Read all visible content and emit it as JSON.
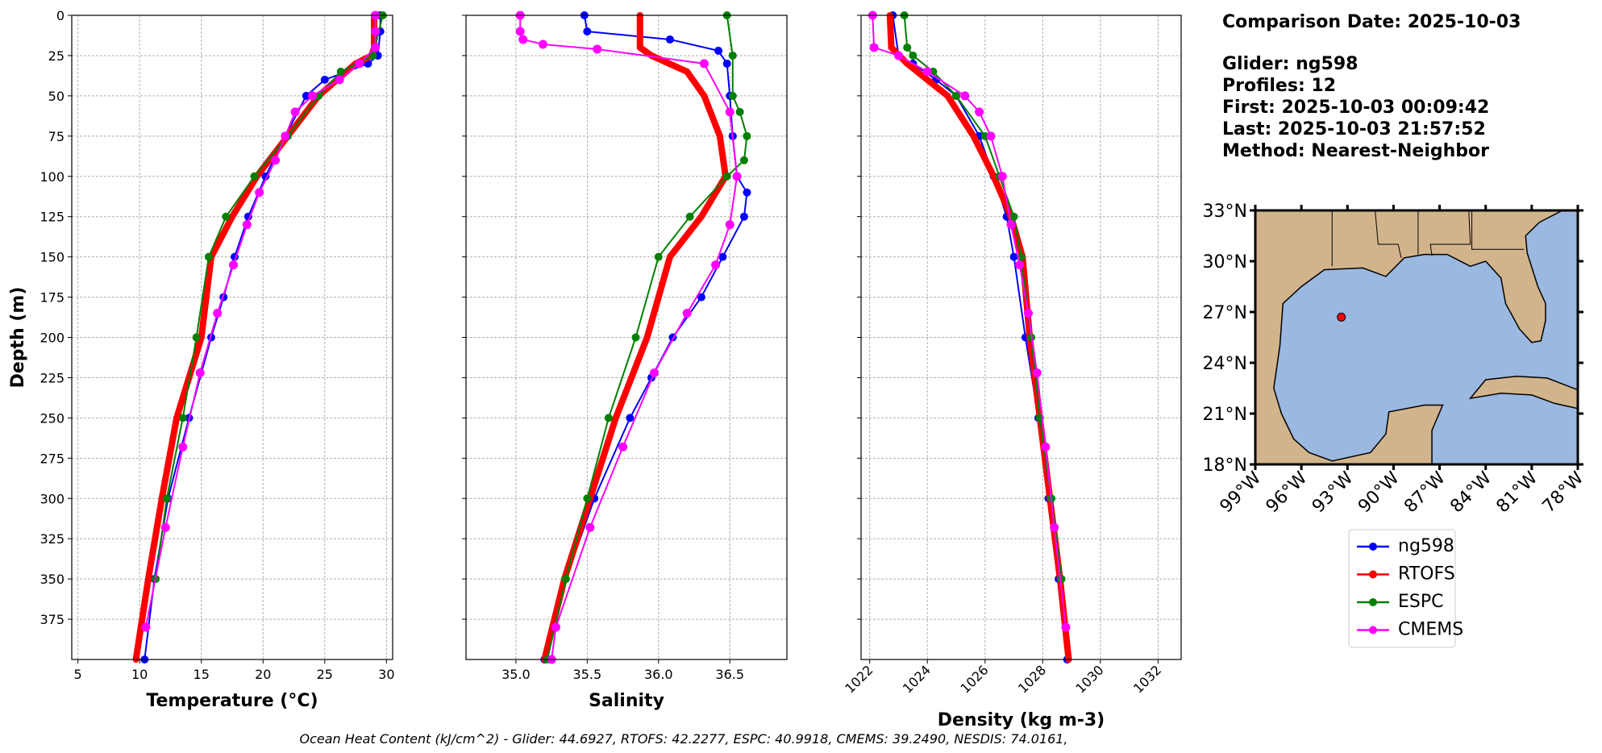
{
  "chart_data": [
    {
      "type": "line",
      "xlabel": "Temperature (°C)",
      "ylabel": "Depth (m)",
      "xlim": [
        4.5,
        30.5
      ],
      "xticks": [
        5,
        10,
        15,
        20,
        25,
        30
      ],
      "ylim": [
        0,
        400
      ],
      "yticks": [
        0,
        25,
        50,
        75,
        100,
        125,
        150,
        175,
        200,
        225,
        250,
        275,
        300,
        325,
        350,
        375
      ],
      "grid": true,
      "inverted_y": true,
      "series": [
        {
          "name": "ng598",
          "color": "#0000ff",
          "depth": [
            0,
            10,
            25,
            30,
            40,
            50,
            75,
            100,
            125,
            150,
            175,
            200,
            250,
            300,
            350,
            400
          ],
          "values": [
            29.5,
            29.5,
            29.3,
            28.5,
            25,
            23.5,
            21.8,
            20.2,
            18.8,
            17.7,
            16.8,
            15.8,
            14,
            12.3,
            11.2,
            10.4
          ]
        },
        {
          "name": "RTOFS",
          "color": "#ff0000",
          "depth": [
            0,
            20,
            25,
            30,
            40,
            50,
            75,
            100,
            125,
            150,
            200,
            250,
            300,
            350,
            400
          ],
          "values": [
            29,
            29,
            28.8,
            27.5,
            26,
            24.5,
            22,
            19.5,
            17.5,
            15.8,
            15,
            13,
            11.8,
            10.7,
            9.7
          ]
        },
        {
          "name": "ESPC",
          "color": "#008000",
          "depth": [
            0,
            25,
            35,
            50,
            75,
            100,
            125,
            150,
            200,
            250,
            300,
            350
          ],
          "values": [
            29.7,
            28.9,
            26.3,
            24.5,
            22,
            19.3,
            17,
            15.6,
            14.6,
            13.5,
            12.2,
            11.3
          ]
        },
        {
          "name": "CMEMS",
          "color": "#ff00ff",
          "depth": [
            0,
            10,
            20,
            30,
            40,
            50,
            60,
            75,
            90,
            110,
            130,
            155,
            185,
            222,
            268,
            318,
            380
          ],
          "values": [
            29.1,
            29.1,
            29.1,
            27.8,
            26.2,
            24,
            22.6,
            21.8,
            21,
            19.7,
            18.7,
            17.6,
            16.3,
            14.9,
            13.5,
            12.1,
            10.5
          ]
        }
      ]
    },
    {
      "type": "line",
      "xlabel": "Salinity",
      "xlim": [
        34.65,
        36.9
      ],
      "xticks": [
        {
          "value": 35,
          "label": "35.0"
        },
        35.5,
        {
          "value": 36,
          "label": "36.0"
        },
        36.5
      ],
      "ylim": [
        0,
        400
      ],
      "yticks": [
        0,
        25,
        50,
        75,
        100,
        125,
        150,
        175,
        200,
        225,
        250,
        275,
        300,
        325,
        350,
        375
      ],
      "grid": true,
      "inverted_y": true,
      "series": [
        {
          "name": "ng598",
          "color": "#0000ff",
          "depth": [
            0,
            10,
            15,
            22,
            30,
            50,
            75,
            100,
            110,
            125,
            150,
            175,
            200,
            225,
            250,
            300,
            350,
            400
          ],
          "values": [
            35.48,
            35.5,
            36.08,
            36.42,
            36.48,
            36.5,
            36.52,
            36.55,
            36.62,
            36.6,
            36.45,
            36.3,
            36.1,
            35.95,
            35.8,
            35.55,
            35.35,
            35.2
          ]
        },
        {
          "name": "RTOFS",
          "color": "#ff0000",
          "depth": [
            0,
            20,
            25,
            35,
            50,
            75,
            100,
            125,
            150,
            200,
            250,
            300,
            350,
            400
          ],
          "values": [
            35.87,
            35.87,
            35.95,
            36.2,
            36.32,
            36.43,
            36.47,
            36.3,
            36.08,
            35.92,
            35.7,
            35.52,
            35.34,
            35.2
          ]
        },
        {
          "name": "ESPC",
          "color": "#008000",
          "depth": [
            0,
            25,
            50,
            60,
            75,
            90,
            100,
            125,
            150,
            200,
            250,
            300,
            350,
            400
          ],
          "values": [
            36.48,
            36.52,
            36.52,
            36.57,
            36.62,
            36.6,
            36.48,
            36.22,
            36,
            35.84,
            35.65,
            35.5,
            35.35,
            35.22
          ]
        },
        {
          "name": "CMEMS",
          "color": "#ff00ff",
          "depth": [
            0,
            10,
            15,
            18,
            21,
            30,
            60,
            100,
            130,
            155,
            185,
            222,
            268,
            318,
            380,
            400
          ],
          "values": [
            35.03,
            35.03,
            35.05,
            35.19,
            35.57,
            36.32,
            36.5,
            36.55,
            36.5,
            36.4,
            36.2,
            35.97,
            35.75,
            35.52,
            35.28,
            35.25
          ]
        }
      ]
    },
    {
      "type": "line",
      "xlabel": "Density (kg m-3)",
      "xlim": [
        1021.7,
        1032.8
      ],
      "xticks": [
        1022,
        1024,
        1026,
        1028,
        1030,
        1032
      ],
      "ylim": [
        0,
        400
      ],
      "yticks": [
        0,
        25,
        50,
        75,
        100,
        125,
        150,
        175,
        200,
        225,
        250,
        275,
        300,
        325,
        350,
        375
      ],
      "grid": true,
      "inverted_y": true,
      "series": [
        {
          "name": "ng598",
          "color": "#0000ff",
          "depth": [
            0,
            25,
            30,
            40,
            50,
            75,
            100,
            125,
            150,
            200,
            250,
            300,
            350,
            400
          ],
          "values": [
            1022.8,
            1023,
            1023.5,
            1024.3,
            1025,
            1025.8,
            1026.3,
            1026.75,
            1027,
            1027.4,
            1027.85,
            1028.2,
            1028.55,
            1028.85
          ]
        },
        {
          "name": "RTOFS",
          "color": "#ff0000",
          "depth": [
            0,
            20,
            30,
            50,
            75,
            100,
            125,
            150,
            200,
            250,
            300,
            350,
            400
          ],
          "values": [
            1022.7,
            1022.75,
            1023.3,
            1024.7,
            1025.6,
            1026.3,
            1026.9,
            1027.3,
            1027.55,
            1027.9,
            1028.25,
            1028.6,
            1028.9
          ]
        },
        {
          "name": "ESPC",
          "color": "#008000",
          "depth": [
            0,
            20,
            25,
            35,
            50,
            75,
            100,
            125,
            150,
            200,
            250,
            300,
            350
          ],
          "values": [
            1023.2,
            1023.3,
            1023.5,
            1024.2,
            1025,
            1026,
            1026.5,
            1027,
            1027.25,
            1027.6,
            1027.9,
            1028.3,
            1028.65
          ]
        },
        {
          "name": "CMEMS",
          "color": "#ff00ff",
          "depth": [
            0,
            20,
            25,
            35,
            50,
            60,
            75,
            100,
            130,
            155,
            185,
            222,
            268,
            318,
            380
          ],
          "values": [
            1022.1,
            1022.15,
            1023,
            1024,
            1025.3,
            1025.8,
            1026.2,
            1026.6,
            1026.9,
            1027.2,
            1027.5,
            1027.8,
            1028.1,
            1028.4,
            1028.8
          ]
        }
      ]
    }
  ],
  "info": [
    "Comparison Date: 2025-10-03",
    "Glider: ng598",
    "Profiles: 12",
    "First: 2025-10-03 00:09:42",
    "Last: 2025-10-03 21:57:52",
    "Method: Nearest-Neighbor"
  ],
  "map": {
    "lat_labels": [
      "33°N",
      "30°N",
      "27°N",
      "24°N",
      "21°N",
      "18°N"
    ],
    "lon_labels": [
      "99°W",
      "96°W",
      "93°W",
      "90°W",
      "87°W",
      "84°W",
      "81°W",
      "78°W"
    ]
  },
  "footer": "Ocean Heat Content (kJ/cm^2) - Glider: 44.6927,  RTOFS: 42.2277,  ESPC: 40.9918,  CMEMS: 39.2490,  NESDIS: 74.0161,"
}
